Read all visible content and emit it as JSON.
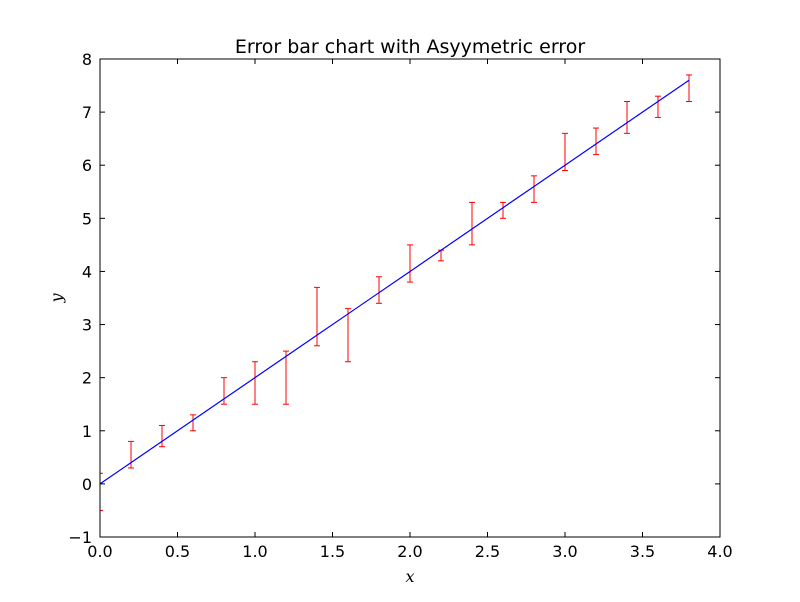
{
  "chart_data": {
    "type": "line",
    "title": "Error bar chart with Asyymetric error",
    "xlabel": "x",
    "ylabel": "y",
    "xlim": [
      0.0,
      4.0
    ],
    "ylim": [
      -1,
      8
    ],
    "xticks": [
      "0.0",
      "0.5",
      "1.0",
      "1.5",
      "2.0",
      "2.5",
      "3.0",
      "3.5",
      "4.0"
    ],
    "yticks": [
      "−1",
      "0",
      "1",
      "2",
      "3",
      "4",
      "5",
      "6",
      "7",
      "8"
    ],
    "grid": false,
    "line_color": "#0000ff",
    "errorbar_color": "#ff0000",
    "series": [
      {
        "x": [
          0.0,
          0.2,
          0.4,
          0.6,
          0.8,
          1.0,
          1.2,
          1.4,
          1.6,
          1.8,
          2.0,
          2.2,
          2.4,
          2.6,
          2.8,
          3.0,
          3.2,
          3.4,
          3.6,
          3.8
        ],
        "y": [
          0.0,
          0.4,
          0.8,
          1.2,
          1.6,
          2.0,
          2.4,
          2.8,
          3.2,
          3.6,
          4.0,
          4.4,
          4.8,
          5.2,
          5.6,
          6.0,
          6.4,
          6.8,
          7.2,
          7.6
        ],
        "err_lower": [
          0.5,
          0.1,
          0.1,
          0.2,
          0.1,
          0.5,
          0.9,
          0.2,
          0.9,
          0.2,
          0.2,
          0.2,
          0.3,
          0.2,
          0.3,
          0.1,
          0.2,
          0.2,
          0.3,
          0.4
        ],
        "err_upper": [
          0.2,
          0.4,
          0.3,
          0.1,
          0.4,
          0.3,
          0.1,
          0.9,
          0.1,
          0.3,
          0.5,
          0.0,
          0.5,
          0.1,
          0.2,
          0.6,
          0.3,
          0.4,
          0.1,
          0.1
        ]
      }
    ]
  }
}
